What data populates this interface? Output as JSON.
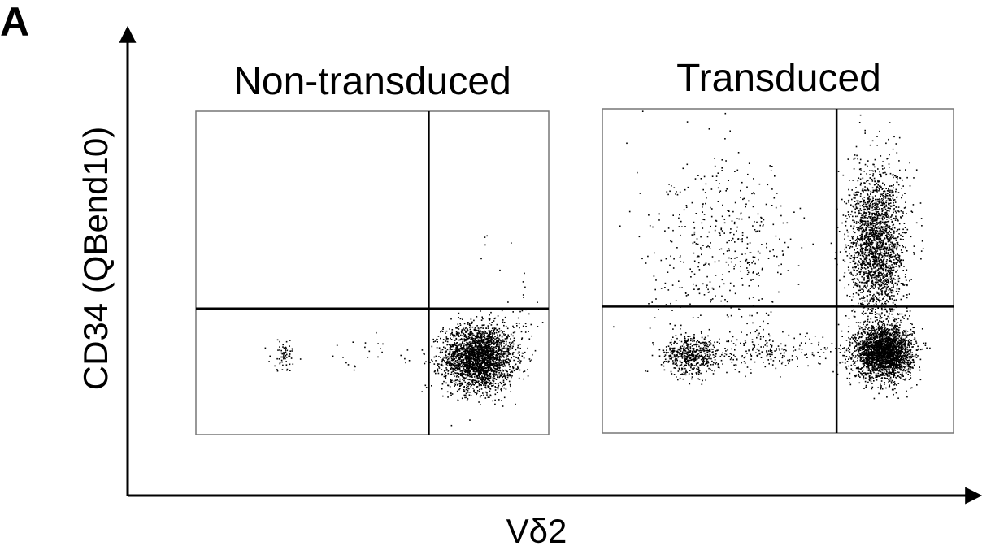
{
  "panel_label": "A",
  "chart_data": [
    {
      "type": "scatter",
      "title": "Non-transduced",
      "xlabel": "Vδ2",
      "ylabel": "CD34 (QBend10)",
      "xlim": [
        0,
        100
      ],
      "ylim": [
        0,
        100
      ],
      "quadrant_gates": {
        "x": 66,
        "y": 39
      },
      "grid": false,
      "point_color": "#000000",
      "populations": [
        {
          "center": [
            80,
            24
          ],
          "sd": [
            5,
            5
          ],
          "count": 2600
        },
        {
          "center": [
            25,
            25
          ],
          "sd": [
            2,
            2.5
          ],
          "count": 70
        },
        {
          "center": [
            48,
            24
          ],
          "sd": [
            10,
            3
          ],
          "count": 25
        },
        {
          "center": [
            93,
            38
          ],
          "sd": [
            1.5,
            6
          ],
          "count": 25
        },
        {
          "center": [
            86,
            57
          ],
          "sd": [
            4,
            6
          ],
          "count": 6
        }
      ]
    },
    {
      "type": "scatter",
      "title": "Transduced",
      "xlabel": "Vδ2",
      "ylabel": "CD34 (QBend10)",
      "xlim": [
        0,
        100
      ],
      "ylim": [
        0,
        100
      ],
      "quadrant_gates": {
        "x": 66.7,
        "y": 39
      },
      "grid": false,
      "point_color": "#000000",
      "populations": [
        {
          "center": [
            80,
            25
          ],
          "sd": [
            4,
            4
          ],
          "count": 2600
        },
        {
          "center": [
            78,
            58
          ],
          "sd": [
            4,
            12
          ],
          "count": 2200
        },
        {
          "center": [
            25,
            24
          ],
          "sd": [
            4,
            3
          ],
          "count": 550
        },
        {
          "center": [
            47,
            25
          ],
          "sd": [
            10,
            3
          ],
          "count": 220
        },
        {
          "center": [
            35,
            58
          ],
          "sd": [
            11,
            13
          ],
          "count": 450
        }
      ]
    }
  ]
}
